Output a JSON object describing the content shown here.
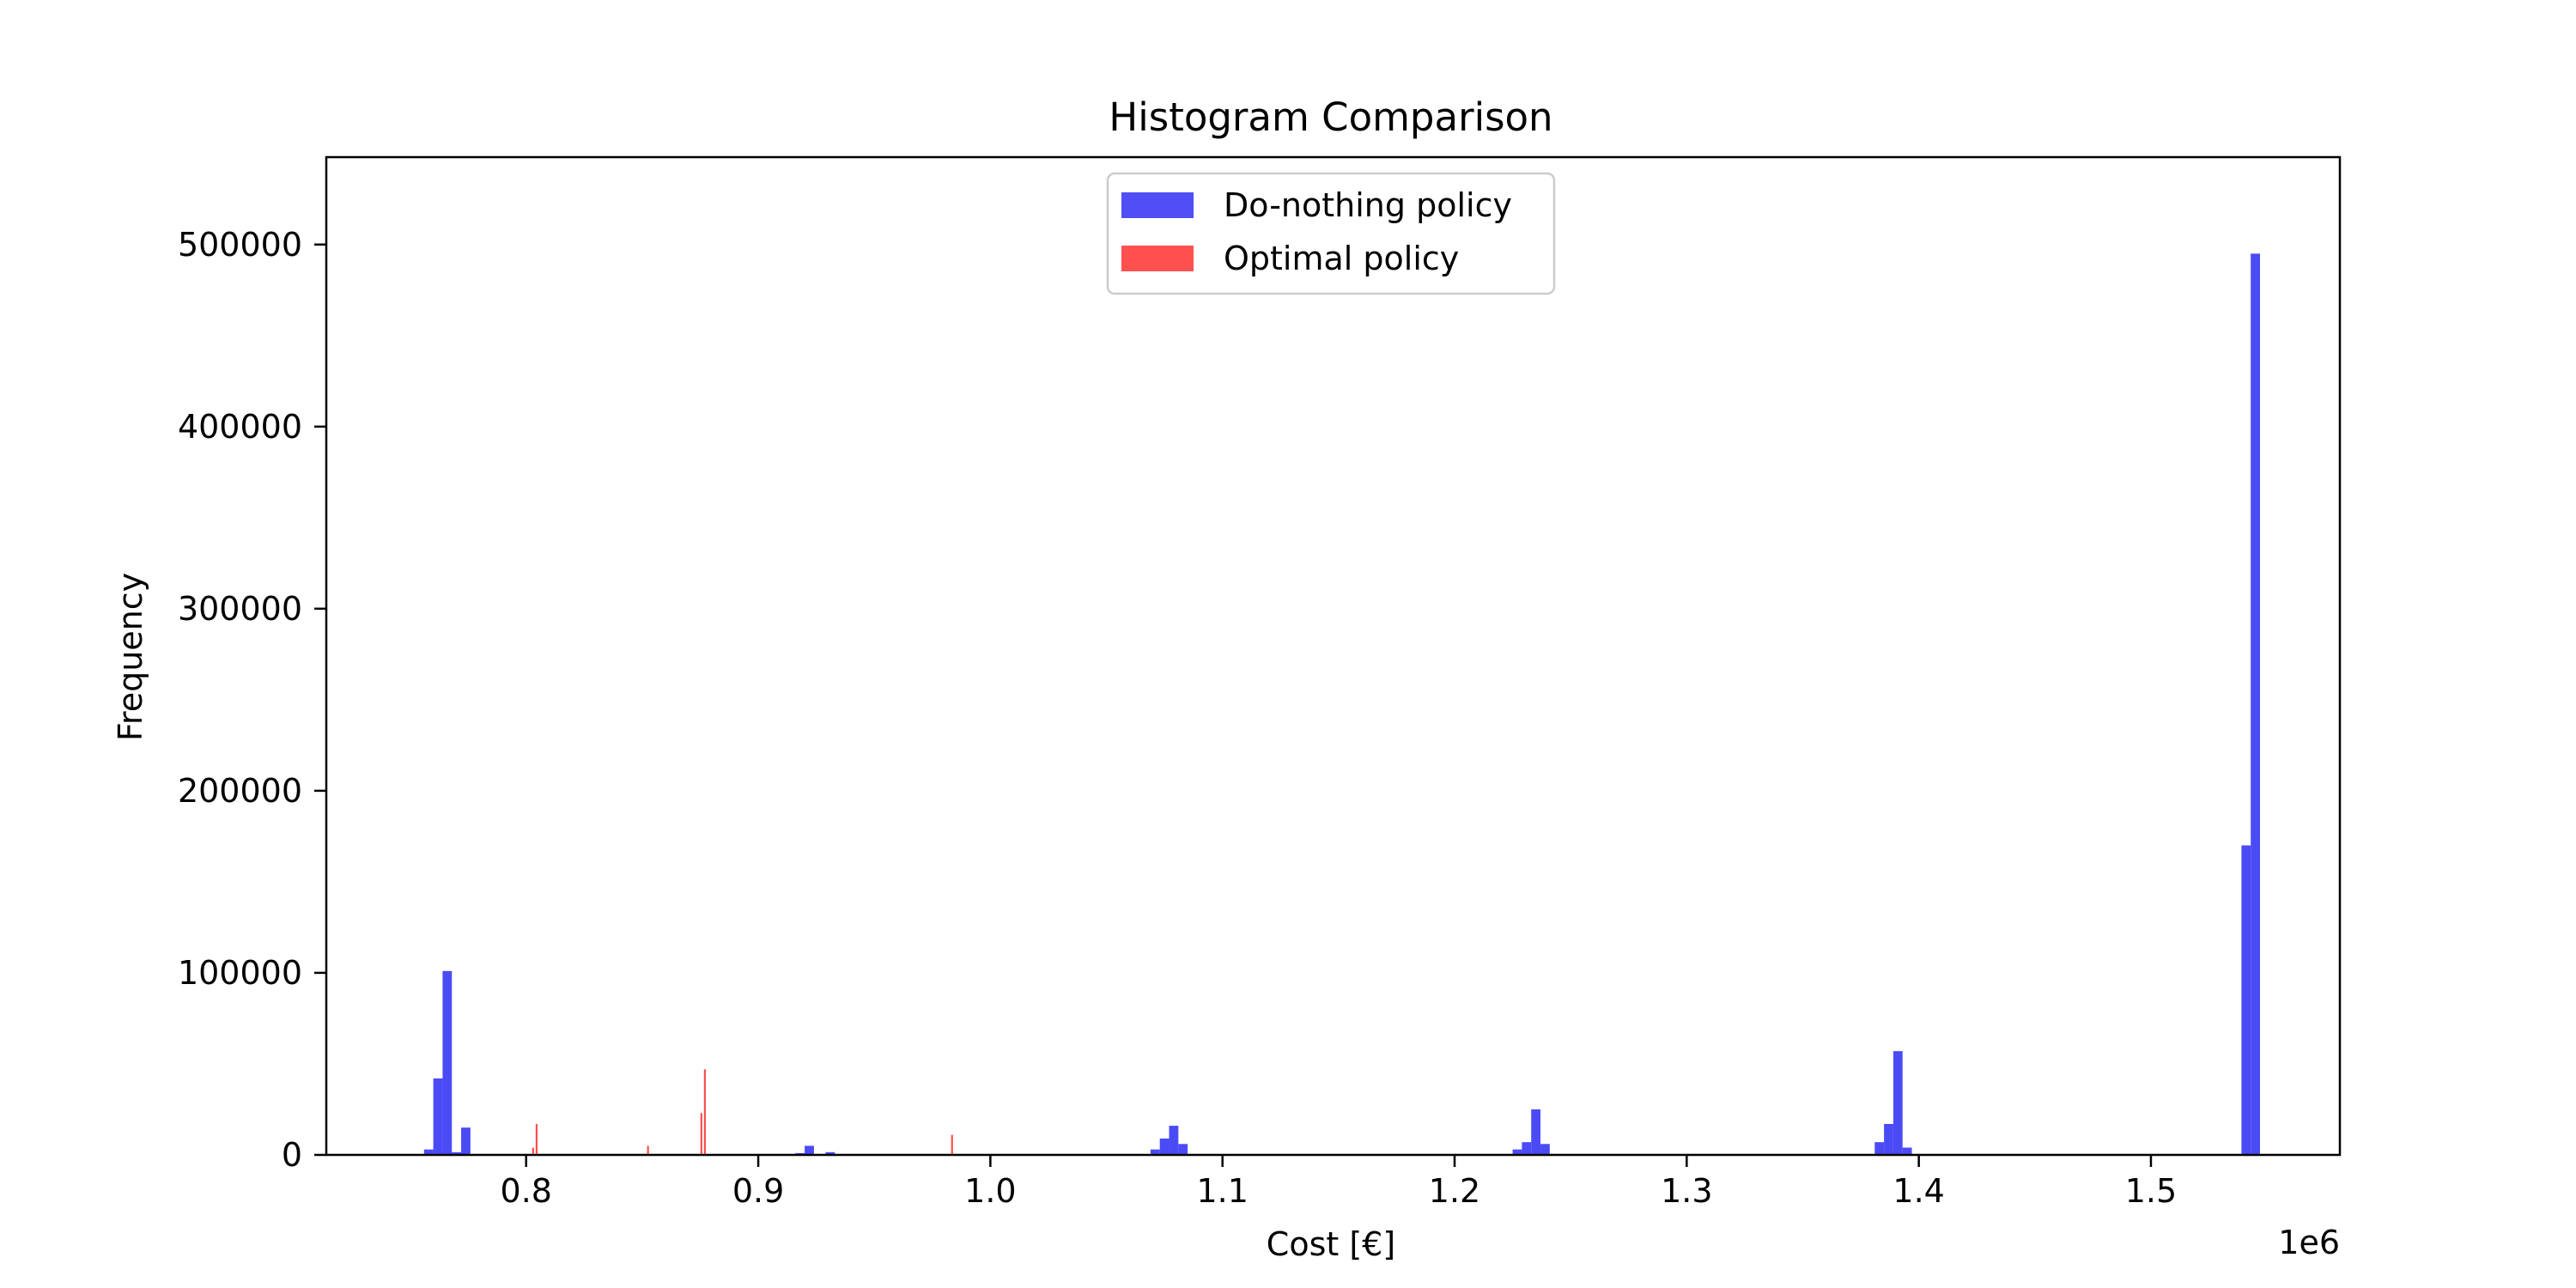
{
  "chart_data": {
    "type": "bar",
    "title": "Histogram Comparison",
    "xlabel": "Cost [€]",
    "ylabel": "Frequency",
    "x_offset_label": "1e6",
    "xlim": [
      0.7139,
      1.5814
    ],
    "ylim": [
      0,
      548000
    ],
    "x_ticks": [
      0.8,
      0.9,
      1.0,
      1.1,
      1.2,
      1.3,
      1.4,
      1.5
    ],
    "x_tick_labels": [
      "0.8",
      "0.9",
      "1.0",
      "1.1",
      "1.2",
      "1.3",
      "1.4",
      "1.5"
    ],
    "y_ticks": [
      0,
      100000,
      200000,
      300000,
      400000,
      500000
    ],
    "y_tick_labels": [
      "0",
      "100000",
      "200000",
      "300000",
      "400000",
      "500000"
    ],
    "grid": false,
    "legend_position": "top-center",
    "series": [
      {
        "name": "Do-nothing policy",
        "color": "#4b4bf5",
        "bin_width": 0.004,
        "bins": [
          {
            "x": 0.758,
            "y": 3000
          },
          {
            "x": 0.762,
            "y": 42000
          },
          {
            "x": 0.766,
            "y": 101000
          },
          {
            "x": 0.77,
            "y": 1500
          },
          {
            "x": 0.774,
            "y": 15000
          },
          {
            "x": 0.918,
            "y": 1000
          },
          {
            "x": 0.922,
            "y": 5000
          },
          {
            "x": 0.931,
            "y": 1500
          },
          {
            "x": 1.071,
            "y": 3000
          },
          {
            "x": 1.075,
            "y": 9000
          },
          {
            "x": 1.079,
            "y": 16000
          },
          {
            "x": 1.083,
            "y": 6000
          },
          {
            "x": 1.227,
            "y": 3000
          },
          {
            "x": 1.231,
            "y": 7000
          },
          {
            "x": 1.235,
            "y": 25000
          },
          {
            "x": 1.239,
            "y": 6000
          },
          {
            "x": 1.383,
            "y": 7000
          },
          {
            "x": 1.387,
            "y": 17000
          },
          {
            "x": 1.391,
            "y": 57000
          },
          {
            "x": 1.395,
            "y": 4000
          },
          {
            "x": 1.541,
            "y": 170000
          },
          {
            "x": 1.545,
            "y": 495000
          }
        ]
      },
      {
        "name": "Optimal policy",
        "color": "#ff4d4d",
        "bin_width": 0.0008,
        "bins": [
          {
            "x": 0.803,
            "y": 4000
          },
          {
            "x": 0.8045,
            "y": 17000
          },
          {
            "x": 0.8525,
            "y": 5000
          },
          {
            "x": 0.8755,
            "y": 23000
          },
          {
            "x": 0.877,
            "y": 47000
          },
          {
            "x": 0.9835,
            "y": 11000
          }
        ]
      }
    ]
  }
}
